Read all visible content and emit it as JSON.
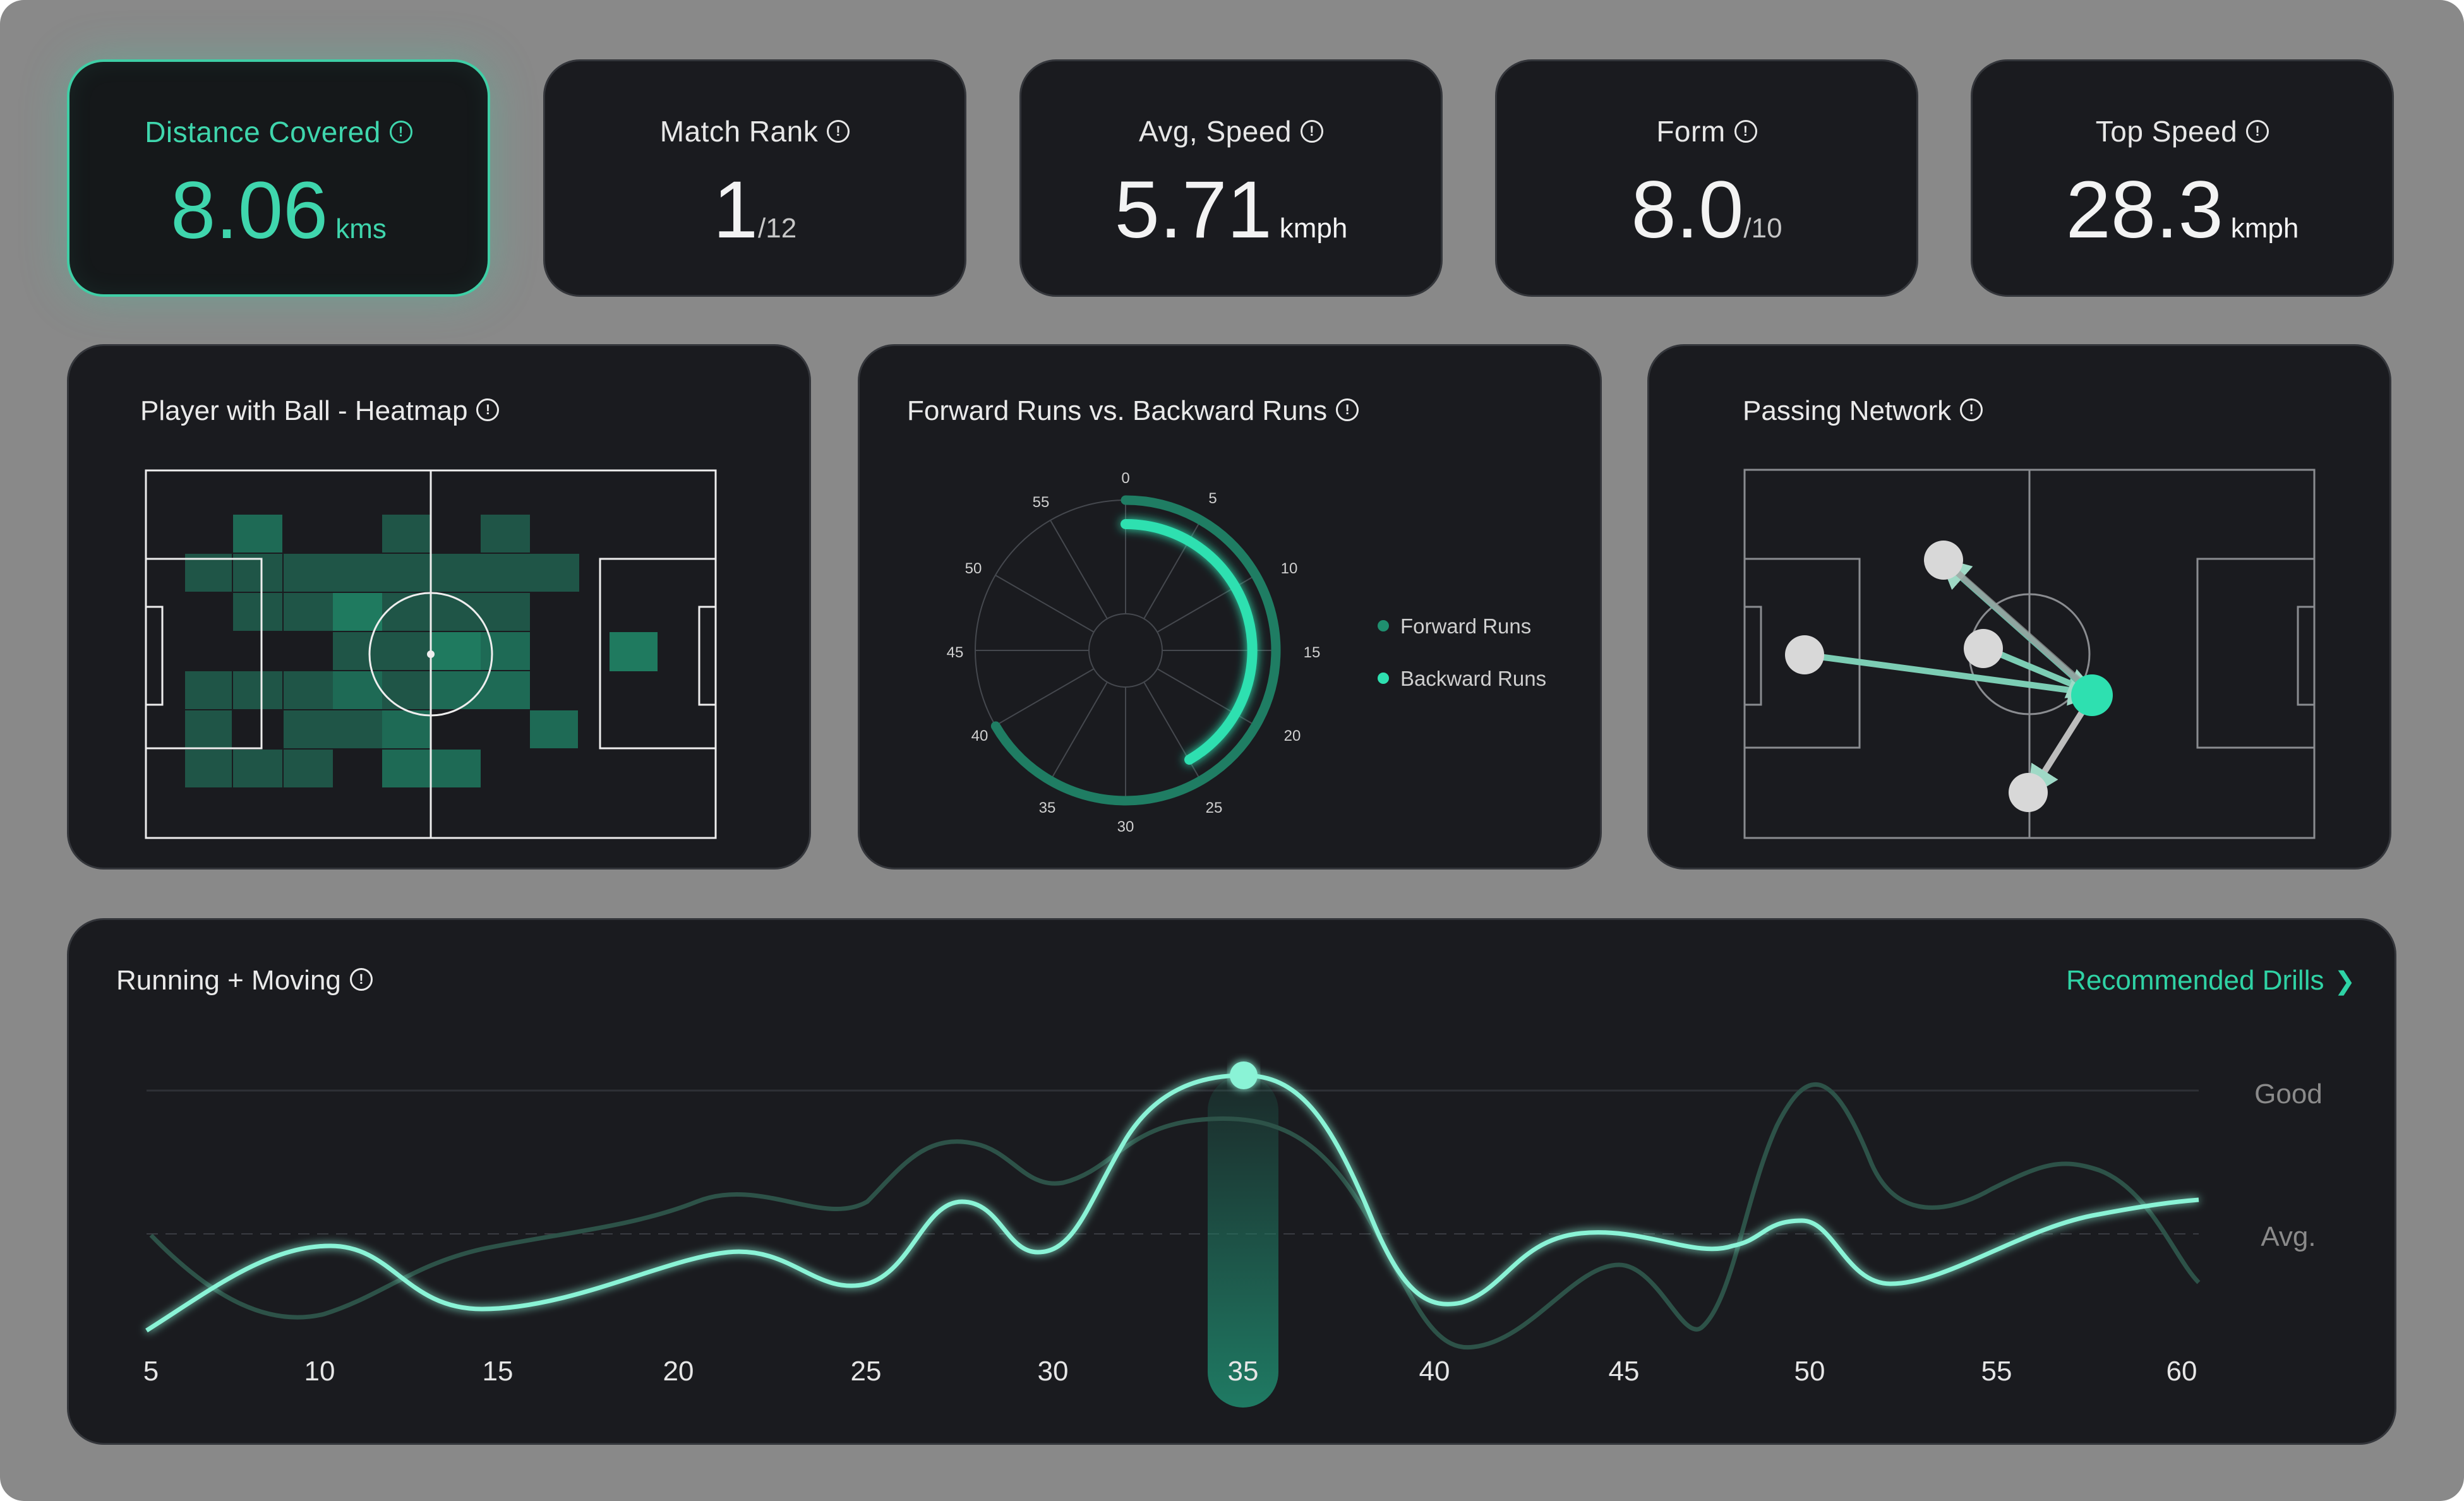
{
  "stats": [
    {
      "label": "Distance Covered",
      "value": "8.06",
      "unit": "kms"
    },
    {
      "label": "Match Rank",
      "value": "1",
      "unit": "/12"
    },
    {
      "label": "Avg, Speed",
      "value": "5.71",
      "unit": "kmph"
    },
    {
      "label": "Form",
      "value": "8.0",
      "unit": "/10"
    },
    {
      "label": "Top Speed",
      "value": "28.3",
      "unit": "kmph"
    }
  ],
  "heatmap": {
    "title": "Player with Ball - Heatmap"
  },
  "runs": {
    "title": "Forward Runs vs. Backward Runs",
    "legend": [
      "Forward Runs",
      "Backward Runs"
    ],
    "ticks": [
      "0",
      "5",
      "10",
      "15",
      "20",
      "25",
      "30",
      "35",
      "40",
      "45",
      "50",
      "55"
    ]
  },
  "passing": {
    "title": "Passing Network"
  },
  "running": {
    "title": "Running + Moving",
    "link": "Recommended Drills",
    "ref_labels": [
      "Good",
      "Avg."
    ],
    "x_labels": [
      "5",
      "10",
      "15",
      "20",
      "25",
      "30",
      "35",
      "40",
      "45",
      "50",
      "55",
      "60"
    ],
    "highlight": "35"
  },
  "colors": {
    "accent": "#2fd3a5",
    "card": "#1a1b1f",
    "frame": "#898989"
  },
  "icons": [
    "info-icon",
    "chevron-right-icon"
  ]
}
